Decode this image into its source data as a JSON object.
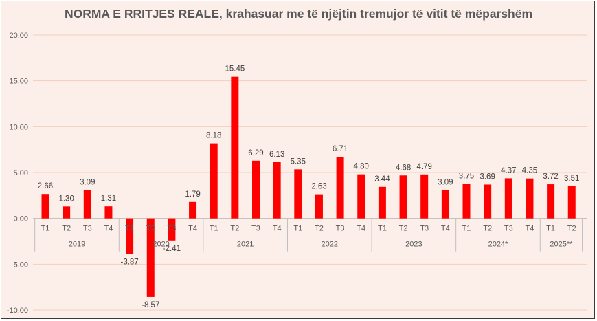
{
  "chart_data": {
    "type": "bar",
    "title": "NORMA E RRITJES REALE, krahasuar me të njëjtin tremujor të vitit të mëparshëm",
    "xlabel": "",
    "ylabel": "",
    "ylim": [
      -10,
      20
    ],
    "yticks": [
      -10,
      -5,
      0,
      5,
      10,
      15,
      20
    ],
    "ytick_labels": [
      "-10.00",
      "-5.00",
      "0.00",
      "5.00",
      "10.00",
      "15.00",
      "20.00"
    ],
    "grid": true,
    "legend": "none",
    "bar_color": "#ff0000",
    "groups": [
      {
        "label": "2019",
        "quarters": [
          "T1",
          "T2",
          "T3",
          "T4"
        ],
        "values": [
          2.66,
          1.3,
          3.09,
          1.31
        ],
        "value_labels": [
          "2.66",
          "1.30",
          "3.09",
          "1.31"
        ]
      },
      {
        "label": "2020",
        "quarters": [
          "T1",
          "T2",
          "T3",
          "T4"
        ],
        "values": [
          -3.87,
          -8.57,
          -2.41,
          1.79
        ],
        "value_labels": [
          "-3.87",
          "-8.57",
          "-2.41",
          "1.79"
        ]
      },
      {
        "label": "2021",
        "quarters": [
          "T1",
          "T2",
          "T3",
          "T4"
        ],
        "values": [
          8.18,
          15.45,
          6.29,
          6.13
        ],
        "value_labels": [
          "8.18",
          "15.45",
          "6.29",
          "6.13"
        ]
      },
      {
        "label": "2022",
        "quarters": [
          "T1",
          "T2",
          "T3",
          "T4"
        ],
        "values": [
          5.35,
          2.63,
          6.71,
          4.8
        ],
        "value_labels": [
          "5.35",
          "2.63",
          "6.71",
          "4.80"
        ]
      },
      {
        "label": "2023",
        "quarters": [
          "T1",
          "T2",
          "T3",
          "T4"
        ],
        "values": [
          3.44,
          4.68,
          4.79,
          3.09
        ],
        "value_labels": [
          "3.44",
          "4.68",
          "4.79",
          "3.09"
        ]
      },
      {
        "label": "2024*",
        "quarters": [
          "T1",
          "T2",
          "T3",
          "T4"
        ],
        "values": [
          3.75,
          3.69,
          4.37,
          4.35
        ],
        "value_labels": [
          "3.75",
          "3.69",
          "4.37",
          "4.35"
        ]
      },
      {
        "label": "2025**",
        "quarters": [
          "T1",
          "T2"
        ],
        "values": [
          3.72,
          3.51
        ],
        "value_labels": [
          "3.72",
          "3.51"
        ]
      }
    ]
  }
}
